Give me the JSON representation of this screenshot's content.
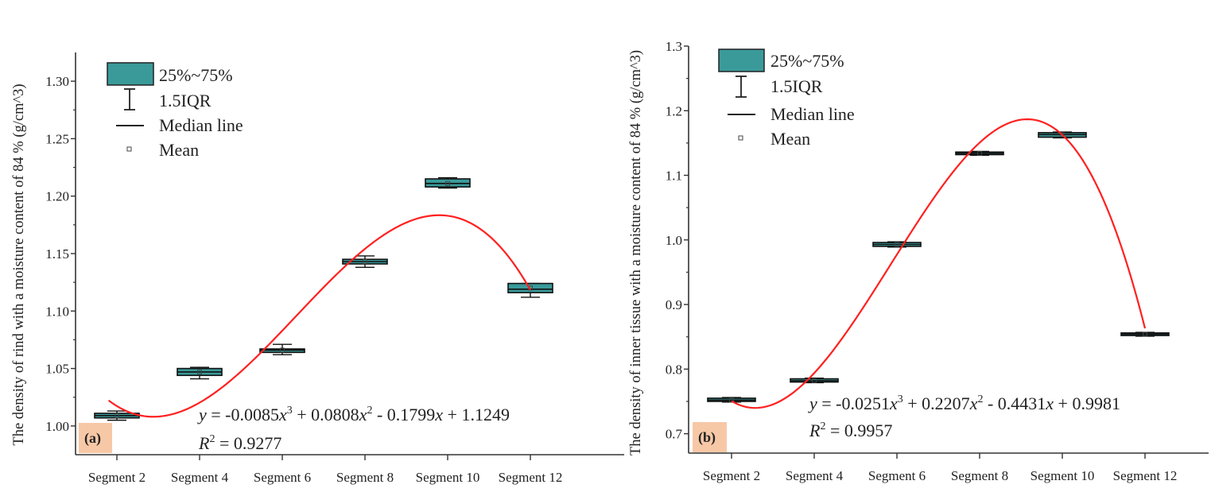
{
  "legend": {
    "box_label": "25%~75%",
    "whisker_label": "1.5IQR",
    "median_label": "Median line",
    "mean_label": "Mean"
  },
  "colors": {
    "box_fill": "#3a9a9a",
    "fit_curve": "#ff2020",
    "panel_tag_bg": "#f7c8a6",
    "axis": "#333333"
  },
  "chart_data": [
    {
      "type": "box",
      "panel_label": "(a)",
      "ylabel": "The density of rind with a moisture content of 84 % (g/cm^3)",
      "categories": [
        "Segment 2",
        "Segment 4",
        "Segment 6",
        "Segment 8",
        "Segment 10",
        "Segment 12"
      ],
      "ylim": [
        0.975,
        1.325
      ],
      "yticks": [
        "1.00",
        "1.05",
        "1.10",
        "1.15",
        "1.20",
        "1.25",
        "1.30"
      ],
      "boxes": [
        {
          "q1": 1.007,
          "q3": 1.011,
          "median": 1.009,
          "mean": 1.009,
          "low": 1.005,
          "high": 1.013
        },
        {
          "q1": 1.044,
          "q3": 1.05,
          "median": 1.047,
          "mean": 1.047,
          "low": 1.041,
          "high": 1.051
        },
        {
          "q1": 1.064,
          "q3": 1.067,
          "median": 1.066,
          "mean": 1.066,
          "low": 1.062,
          "high": 1.071
        },
        {
          "q1": 1.141,
          "q3": 1.145,
          "median": 1.143,
          "mean": 1.143,
          "low": 1.138,
          "high": 1.148
        },
        {
          "q1": 1.208,
          "q3": 1.215,
          "median": 1.211,
          "mean": 1.211,
          "low": 1.207,
          "high": 1.216
        },
        {
          "q1": 1.116,
          "q3": 1.124,
          "median": 1.119,
          "mean": 1.12,
          "low": 1.112,
          "high": 1.124
        }
      ],
      "fit": {
        "coefficients": [
          -0.0085,
          0.0808,
          -0.1799,
          1.1249
        ],
        "x_range": [
          0.9,
          6.0
        ],
        "equation_text": {
          "lead": "y",
          "p1": " = -0.0085",
          "v1": "x",
          "e1": "3",
          "p2": " + 0.0808",
          "v2": "x",
          "e2": "2",
          "p3": " - 0.1799",
          "v3": "x",
          "p4": " + 1.1249"
        },
        "r2_text": {
          "lead": "R",
          "exp": "2",
          "rest": " = 0.9277"
        }
      }
    },
    {
      "type": "box",
      "panel_label": "(b)",
      "ylabel": "The density of inner tissue with a moisture content of 84 % (g/cm^3)",
      "categories": [
        "Segment 2",
        "Segment 4",
        "Segment 6",
        "Segment 8",
        "Segment 10",
        "Segment 12"
      ],
      "ylim": [
        0.67,
        1.3
      ],
      "yticks": [
        "0.7",
        "0.8",
        "0.9",
        "1.0",
        "1.1",
        "1.2",
        "1.3"
      ],
      "boxes": [
        {
          "q1": 0.75,
          "q3": 0.755,
          "median": 0.752,
          "mean": 0.752,
          "low": 0.749,
          "high": 0.756
        },
        {
          "q1": 0.78,
          "q3": 0.785,
          "median": 0.782,
          "mean": 0.782,
          "low": 0.779,
          "high": 0.786
        },
        {
          "q1": 0.99,
          "q3": 0.996,
          "median": 0.993,
          "mean": 0.993,
          "low": 0.989,
          "high": 0.997
        },
        {
          "q1": 1.132,
          "q3": 1.136,
          "median": 1.134,
          "mean": 1.134,
          "low": 1.131,
          "high": 1.137
        },
        {
          "q1": 1.159,
          "q3": 1.166,
          "median": 1.163,
          "mean": 1.163,
          "low": 1.158,
          "high": 1.167
        },
        {
          "q1": 0.852,
          "q3": 0.856,
          "median": 0.854,
          "mean": 0.854,
          "low": 0.851,
          "high": 0.857
        }
      ],
      "fit": {
        "coefficients": [
          -0.0251,
          0.2207,
          -0.4431,
          0.9981
        ],
        "x_range": [
          1.0,
          6.0
        ],
        "equation_text": {
          "lead": "y",
          "p1": " = -0.0251",
          "v1": "x",
          "e1": "3",
          "p2": " + 0.2207",
          "v2": "x",
          "e2": "2",
          "p3": " - 0.4431",
          "v3": "x",
          "p4": " + 0.9981"
        },
        "r2_text": {
          "lead": "R",
          "exp": "2",
          "rest": " = 0.9957"
        }
      }
    }
  ]
}
